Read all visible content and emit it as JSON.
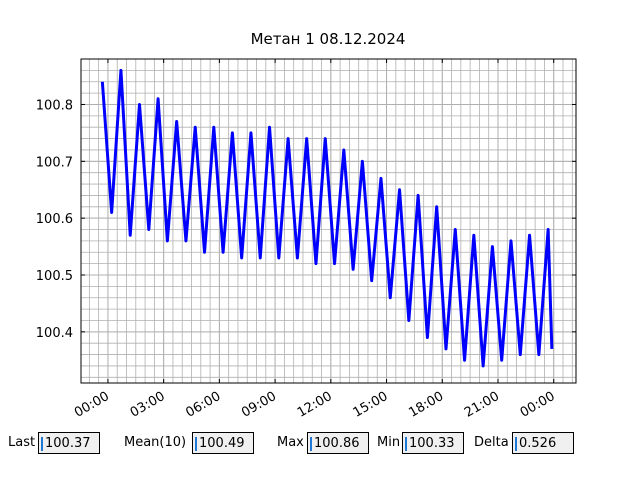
{
  "chart_data": {
    "type": "line",
    "title": "Метан 1 08.12.2024",
    "x": [
      -0.3,
      0.2,
      0.7,
      1.2,
      1.7,
      2.2,
      2.7,
      3.2,
      3.7,
      4.2,
      4.7,
      5.2,
      5.7,
      6.2,
      6.7,
      7.2,
      7.7,
      8.2,
      8.7,
      9.2,
      9.7,
      10.2,
      10.7,
      11.2,
      11.7,
      12.2,
      12.7,
      13.2,
      13.7,
      14.2,
      14.7,
      15.2,
      15.7,
      16.2,
      16.7,
      17.2,
      17.7,
      18.2,
      18.7,
      19.2,
      19.7,
      20.2,
      20.7,
      21.2,
      21.7,
      22.2,
      22.7,
      23.2,
      23.7,
      23.9
    ],
    "series": [
      {
        "color": "#0000ff",
        "values": [
          100.84,
          100.61,
          100.86,
          100.57,
          100.8,
          100.58,
          100.81,
          100.56,
          100.77,
          100.56,
          100.76,
          100.54,
          100.76,
          100.54,
          100.75,
          100.53,
          100.75,
          100.53,
          100.76,
          100.53,
          100.74,
          100.53,
          100.74,
          100.52,
          100.74,
          100.52,
          100.72,
          100.51,
          100.7,
          100.49,
          100.67,
          100.46,
          100.65,
          100.42,
          100.64,
          100.39,
          100.62,
          100.37,
          100.58,
          100.35,
          100.57,
          100.34,
          100.55,
          100.35,
          100.56,
          100.36,
          100.57,
          100.36,
          100.58,
          100.37
        ]
      }
    ],
    "xlim": [
      -1.45,
      25.2
    ],
    "xticks": [
      {
        "value": 0,
        "label": "00:00"
      },
      {
        "value": 3,
        "label": "03:00"
      },
      {
        "value": 6,
        "label": "06:00"
      },
      {
        "value": 9,
        "label": "09:00"
      },
      {
        "value": 12,
        "label": "12:00"
      },
      {
        "value": 15,
        "label": "15:00"
      },
      {
        "value": 18,
        "label": "18:00"
      },
      {
        "value": 21,
        "label": "21:00"
      },
      {
        "value": 24,
        "label": "00:00"
      }
    ],
    "ylim": [
      100.31,
      100.88
    ],
    "yticks": [
      100.4,
      100.5,
      100.6,
      100.7,
      100.8
    ],
    "grid": true,
    "minor_divisions": {
      "x": 6,
      "y": 5
    },
    "stats": [
      {
        "label": "Last",
        "value": "100.37"
      },
      {
        "label": "Mean(10)",
        "value": "100.49"
      },
      {
        "label": "Max",
        "value": "100.86"
      },
      {
        "label": "Min",
        "value": "100.33"
      },
      {
        "label": "Delta",
        "value": "0.526"
      }
    ]
  }
}
